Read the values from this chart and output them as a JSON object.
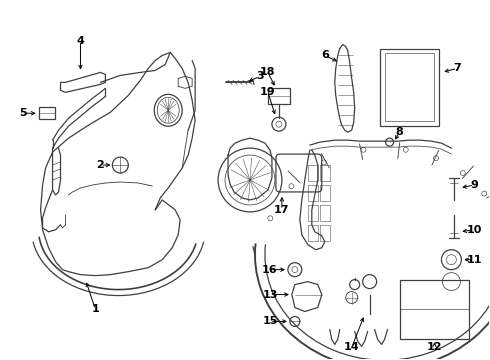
{
  "bg_color": "#ffffff",
  "line_color": "#404040",
  "text_color": "#000000",
  "lw": 0.9,
  "label_fontsize": 8.0
}
